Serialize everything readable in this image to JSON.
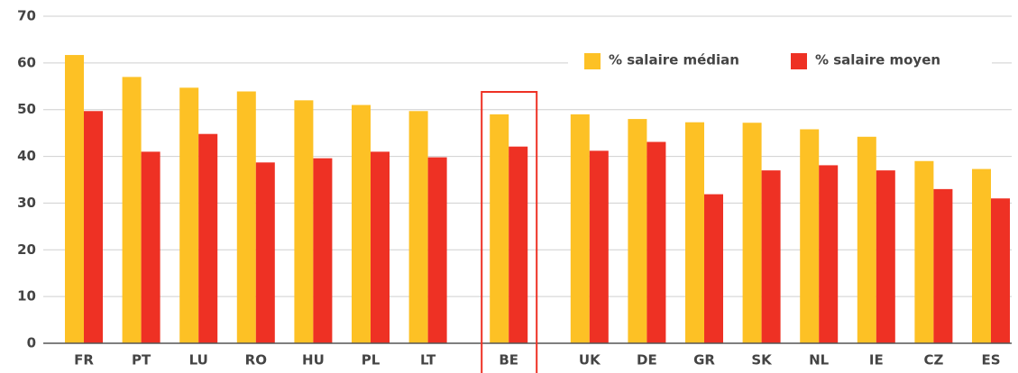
{
  "chart_data": {
    "type": "bar",
    "categories": [
      "FR",
      "PT",
      "LU",
      "RO",
      "HU",
      "PL",
      "LT",
      "BE",
      "UK",
      "DE",
      "GR",
      "SK",
      "NL",
      "IE",
      "CZ",
      "ES"
    ],
    "series": [
      {
        "name": "% salaire médian",
        "color": "#fdc125",
        "values": [
          61.7,
          57,
          54.7,
          53.9,
          52,
          51,
          49.7,
          49,
          49,
          48,
          47.3,
          47.2,
          45.8,
          44.2,
          39,
          37.3
        ]
      },
      {
        "name": "% salaire moyen",
        "color": "#ee3124",
        "values": [
          49.7,
          41,
          44.8,
          38.7,
          39.6,
          41,
          39.8,
          42.1,
          41.2,
          43.1,
          31.9,
          37,
          38.1,
          37,
          33,
          31
        ]
      }
    ],
    "ylim": [
      0,
      70
    ],
    "yticks": [
      0,
      10,
      20,
      30,
      40,
      50,
      60,
      70
    ],
    "grid": true,
    "highlight": "BE",
    "highlight_color": "#ee3124",
    "legend": "upper right"
  }
}
